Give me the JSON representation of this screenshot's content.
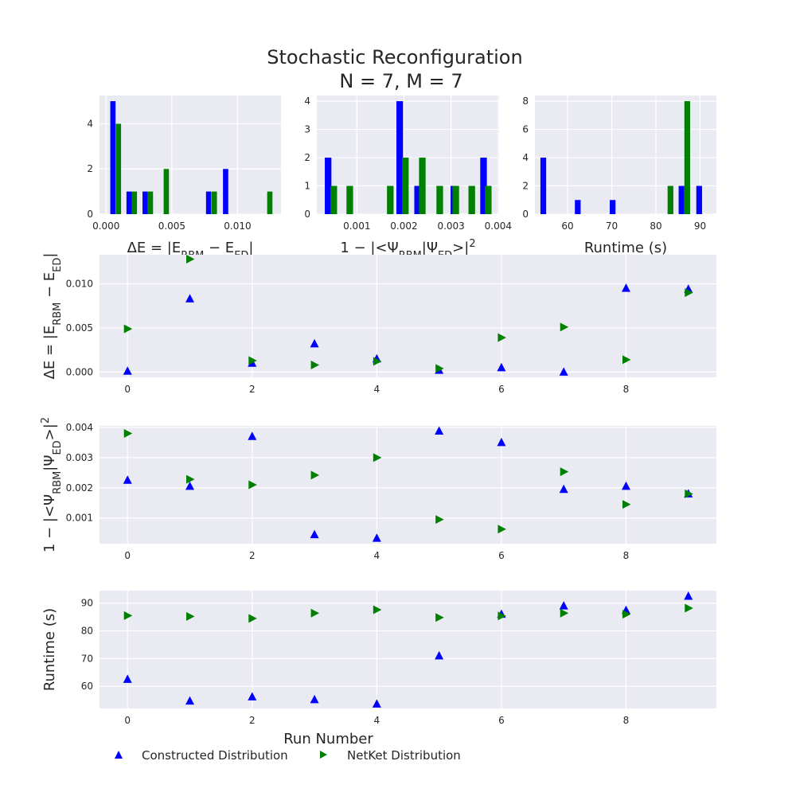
{
  "figure": {
    "title_line1": "Stochastic Reconfiguration",
    "title_line2": "N = 7, M = 7",
    "colors": {
      "constructed": "#0000ff",
      "netket": "#008000",
      "panel_bg": "#eaeaf2",
      "grid": "#ffffff"
    }
  },
  "legend": {
    "constructed": "Constructed Distribution",
    "netket": "NetKet Distribution"
  },
  "chart_data": [
    {
      "id": "hist_energy",
      "type": "bar",
      "xlabel": "ΔE = |E_RBM − E_ED|",
      "xlim": [
        -0.0005,
        0.0133
      ],
      "ylim": [
        0,
        5.25
      ],
      "xticks": [
        0.0,
        0.005,
        0.01
      ],
      "xtick_labels": [
        "0.000",
        "0.005",
        "0.010"
      ],
      "yticks": [
        0,
        2,
        4
      ],
      "bar_width": 0.0004,
      "series": [
        {
          "name": "Constructed Distribution",
          "x": [
            0.00052,
            0.00175,
            0.00297,
            0.0078,
            0.00909
          ],
          "values": [
            5,
            1,
            1,
            1,
            2
          ]
        },
        {
          "name": "NetKet Distribution",
          "x": [
            0.00094,
            0.00215,
            0.00337,
            0.00458,
            0.00823,
            0.01245
          ],
          "values": [
            4,
            1,
            1,
            2,
            1,
            1
          ]
        }
      ]
    },
    {
      "id": "hist_fidelity",
      "type": "bar",
      "xlabel": "1 − |<Ψ_RBM|Ψ_ED>|²",
      "xlim": [
        0.00015,
        0.00402
      ],
      "ylim": [
        0,
        4.2
      ],
      "xticks": [
        0.001,
        0.002,
        0.003,
        0.004
      ],
      "xtick_labels": [
        "0.001",
        "0.002",
        "0.003",
        "0.004"
      ],
      "yticks": [
        0,
        1,
        2,
        3,
        4
      ],
      "bar_width": 0.00014,
      "series": [
        {
          "name": "Constructed Distribution",
          "x": [
            0.00039,
            0.00191,
            0.00229,
            0.00306,
            0.00369
          ],
          "values": [
            2,
            4,
            1,
            1,
            2
          ]
        },
        {
          "name": "NetKet Distribution",
          "x": [
            0.00051,
            0.00085,
            0.00171,
            0.00203,
            0.00239,
            0.00276,
            0.0031,
            0.00344,
            0.00379
          ],
          "values": [
            1,
            1,
            1,
            2,
            2,
            1,
            1,
            1,
            1
          ]
        }
      ]
    },
    {
      "id": "hist_runtime",
      "type": "bar",
      "xlabel": "Runtime (s)",
      "xlim": [
        52.6,
        93.7
      ],
      "ylim": [
        0,
        8.4
      ],
      "xticks": [
        60,
        70,
        80,
        90
      ],
      "xtick_labels": [
        "60",
        "70",
        "80",
        "90"
      ],
      "yticks": [
        0,
        2,
        4,
        6,
        8
      ],
      "bar_width": 1.3,
      "series": [
        {
          "name": "Constructed Distribution",
          "x": [
            54.5,
            62.3,
            70.2,
            85.8,
            89.8
          ],
          "values": [
            4,
            1,
            1,
            2,
            2
          ]
        },
        {
          "name": "NetKet Distribution",
          "x": [
            83.3,
            87.1
          ],
          "values": [
            2,
            8
          ]
        }
      ]
    },
    {
      "id": "scatter_energy",
      "type": "scatter",
      "xlabel": "",
      "ylabel": "ΔE = |E_RBM − E_ED|",
      "xlim": [
        -0.45,
        9.45
      ],
      "ylim": [
        -0.0006,
        0.0133
      ],
      "xticks": [
        0,
        2,
        4,
        6,
        8
      ],
      "yticks": [
        0.0,
        0.005,
        0.01
      ],
      "ytick_labels": [
        "0.000",
        "0.005",
        "0.010"
      ],
      "x": [
        0,
        1,
        2,
        3,
        4,
        5,
        6,
        7,
        8,
        9
      ],
      "series": [
        {
          "name": "Constructed Distribution",
          "marker": "triangle-up",
          "values": [
            0.0001,
            0.0083,
            0.001,
            0.0032,
            0.0015,
            0.0002,
            0.0005,
            0.0,
            0.0095,
            0.0094
          ]
        },
        {
          "name": "NetKet Distribution",
          "marker": "triangle-right",
          "values": [
            0.0049,
            0.0128,
            0.0013,
            0.0008,
            0.0012,
            0.0004,
            0.0039,
            0.0051,
            0.0014,
            0.009
          ]
        }
      ]
    },
    {
      "id": "scatter_fidelity",
      "type": "scatter",
      "xlabel": "",
      "ylabel": "1 − |<Ψ_RBM|Ψ_ED>|²",
      "xlim": [
        -0.45,
        9.45
      ],
      "ylim": [
        0.00015,
        0.00405
      ],
      "xticks": [
        0,
        2,
        4,
        6,
        8
      ],
      "yticks": [
        0.001,
        0.002,
        0.003,
        0.004
      ],
      "ytick_labels": [
        "0.001",
        "0.002",
        "0.003",
        "0.004"
      ],
      "x": [
        0,
        1,
        2,
        3,
        4,
        5,
        6,
        7,
        8,
        9
      ],
      "series": [
        {
          "name": "Constructed Distribution",
          "marker": "triangle-up",
          "values": [
            0.00225,
            0.00205,
            0.0037,
            0.00045,
            0.00033,
            0.00388,
            0.0035,
            0.00195,
            0.00205,
            0.0018
          ]
        },
        {
          "name": "NetKet Distribution",
          "marker": "triangle-right",
          "values": [
            0.0038,
            0.00228,
            0.0021,
            0.00242,
            0.003,
            0.00095,
            0.00063,
            0.00253,
            0.00145,
            0.0018
          ]
        }
      ]
    },
    {
      "id": "scatter_runtime",
      "type": "scatter",
      "xlabel": "Run Number",
      "ylabel": "Runtime (s)",
      "xlim": [
        -0.45,
        9.45
      ],
      "ylim": [
        52,
        94.5
      ],
      "xticks": [
        0,
        2,
        4,
        6,
        8
      ],
      "yticks": [
        60,
        70,
        80,
        90
      ],
      "ytick_labels": [
        "60",
        "70",
        "80",
        "90"
      ],
      "x": [
        0,
        1,
        2,
        3,
        4,
        5,
        6,
        7,
        8,
        9
      ],
      "series": [
        {
          "name": "Constructed Distribution",
          "marker": "triangle-up",
          "values": [
            62.5,
            54.7,
            56.2,
            55.2,
            53.6,
            71,
            86,
            89,
            87.4,
            92.5
          ]
        },
        {
          "name": "NetKet Distribution",
          "marker": "triangle-right",
          "values": [
            85.5,
            85.2,
            84.5,
            86.4,
            87.6,
            84.8,
            85.4,
            86.4,
            86,
            88.2
          ]
        }
      ]
    }
  ]
}
